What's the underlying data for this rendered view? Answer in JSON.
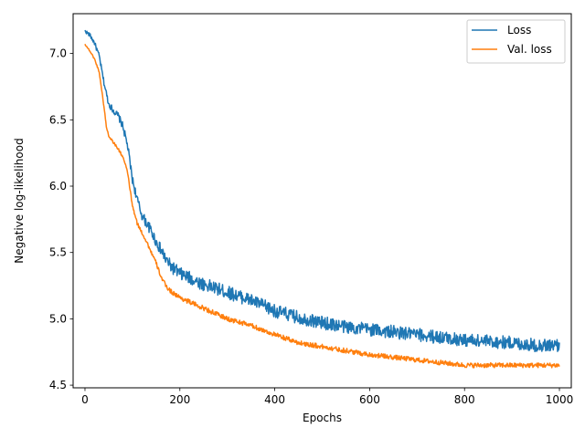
{
  "chart_data": {
    "type": "line",
    "title": "",
    "xlabel": "Epochs",
    "ylabel": "Negative log-likelihood",
    "xlim": [
      -25,
      1025
    ],
    "ylim": [
      4.48,
      7.3
    ],
    "x_ticks": [
      0,
      200,
      400,
      600,
      800,
      1000
    ],
    "y_ticks": [
      4.5,
      5.0,
      5.5,
      6.0,
      6.5,
      7.0
    ],
    "y_tick_labels": [
      "4.5",
      "5.0",
      "5.5",
      "6.0",
      "6.5",
      "7.0"
    ],
    "grid": false,
    "legend_position": "top-right",
    "series": [
      {
        "name": "Loss",
        "color": "#1f77b4",
        "noise": 0.05,
        "points": [
          [
            0,
            7.17
          ],
          [
            10,
            7.14
          ],
          [
            20,
            7.08
          ],
          [
            30,
            6.98
          ],
          [
            40,
            6.78
          ],
          [
            50,
            6.62
          ],
          [
            60,
            6.57
          ],
          [
            70,
            6.53
          ],
          [
            80,
            6.45
          ],
          [
            90,
            6.3
          ],
          [
            100,
            6.05
          ],
          [
            110,
            5.9
          ],
          [
            120,
            5.78
          ],
          [
            130,
            5.72
          ],
          [
            140,
            5.66
          ],
          [
            150,
            5.58
          ],
          [
            160,
            5.52
          ],
          [
            170,
            5.45
          ],
          [
            180,
            5.4
          ],
          [
            190,
            5.37
          ],
          [
            200,
            5.34
          ],
          [
            250,
            5.26
          ],
          [
            300,
            5.2
          ],
          [
            350,
            5.14
          ],
          [
            400,
            5.06
          ],
          [
            450,
            5.01
          ],
          [
            500,
            4.97
          ],
          [
            550,
            4.94
          ],
          [
            600,
            4.92
          ],
          [
            650,
            4.9
          ],
          [
            700,
            4.88
          ],
          [
            750,
            4.86
          ],
          [
            800,
            4.84
          ],
          [
            850,
            4.83
          ],
          [
            900,
            4.82
          ],
          [
            950,
            4.8
          ],
          [
            1000,
            4.8
          ]
        ]
      },
      {
        "name": "Val. loss",
        "color": "#ff7f0e",
        "noise": 0.018,
        "points": [
          [
            0,
            7.07
          ],
          [
            10,
            7.02
          ],
          [
            20,
            6.96
          ],
          [
            30,
            6.86
          ],
          [
            40,
            6.6
          ],
          [
            45,
            6.45
          ],
          [
            50,
            6.38
          ],
          [
            60,
            6.33
          ],
          [
            70,
            6.28
          ],
          [
            80,
            6.22
          ],
          [
            90,
            6.1
          ],
          [
            100,
            5.85
          ],
          [
            110,
            5.72
          ],
          [
            120,
            5.65
          ],
          [
            130,
            5.58
          ],
          [
            140,
            5.5
          ],
          [
            150,
            5.42
          ],
          [
            160,
            5.32
          ],
          [
            170,
            5.25
          ],
          [
            180,
            5.21
          ],
          [
            200,
            5.16
          ],
          [
            250,
            5.08
          ],
          [
            300,
            5.0
          ],
          [
            350,
            4.95
          ],
          [
            400,
            4.88
          ],
          [
            450,
            4.82
          ],
          [
            500,
            4.79
          ],
          [
            550,
            4.76
          ],
          [
            600,
            4.73
          ],
          [
            650,
            4.71
          ],
          [
            700,
            4.69
          ],
          [
            750,
            4.67
          ],
          [
            800,
            4.65
          ],
          [
            850,
            4.65
          ],
          [
            900,
            4.65
          ],
          [
            950,
            4.65
          ],
          [
            1000,
            4.65
          ]
        ]
      }
    ]
  }
}
